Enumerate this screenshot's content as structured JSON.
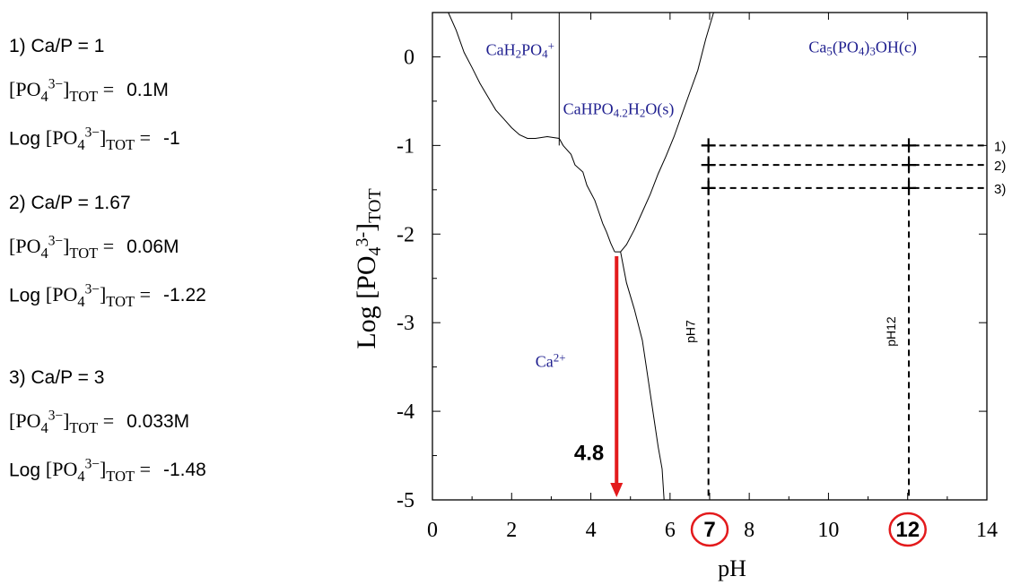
{
  "cases": [
    {
      "heading": "1) Ca/P = 1",
      "conc": "0.1M",
      "log": "-1"
    },
    {
      "heading": "2) Ca/P = 1.67",
      "conc": "0.06M",
      "log": "-1.22"
    },
    {
      "heading": "3) Ca/P = 3",
      "conc": "0.033M",
      "log": "-1.48"
    }
  ],
  "formula": {
    "species": "PO",
    "sub4": "4",
    "charge": "3−",
    "tot": "TOT",
    "log_word": "Log",
    "eq": "="
  },
  "chart_data": {
    "type": "line",
    "title": "",
    "xlabel": "pH",
    "ylabel": "Log [PO4 3-]TOT",
    "xlim": [
      0,
      14
    ],
    "ylim": [
      -5,
      0.5
    ],
    "xticks": [
      "0",
      "2",
      "4",
      "6",
      "7",
      "8",
      "10",
      "12",
      "14"
    ],
    "yticks": [
      "0",
      "-1",
      "-2",
      "-3",
      "-4",
      "-5"
    ],
    "boundaries": [
      {
        "name": "",
        "points": [
          [
            0.4,
            0.5
          ],
          [
            0.6,
            0.3
          ],
          [
            0.8,
            0.05
          ],
          [
            1.0,
            -0.12
          ],
          [
            1.2,
            -0.3
          ],
          [
            1.4,
            -0.45
          ],
          [
            1.6,
            -0.6
          ],
          [
            1.8,
            -0.7
          ],
          [
            2.0,
            -0.8
          ],
          [
            2.2,
            -0.88
          ],
          [
            2.4,
            -0.92
          ],
          [
            2.6,
            -0.92
          ],
          [
            2.9,
            -0.9
          ],
          [
            3.2,
            -0.92
          ],
          [
            3.3,
            -1.0
          ],
          [
            3.5,
            -1.1
          ],
          [
            3.6,
            -1.22
          ],
          [
            3.8,
            -1.3
          ],
          [
            3.9,
            -1.45
          ],
          [
            4.1,
            -1.62
          ],
          [
            4.2,
            -1.75
          ],
          [
            4.3,
            -1.88
          ],
          [
            4.4,
            -1.98
          ],
          [
            4.5,
            -2.1
          ],
          [
            4.6,
            -2.2
          ]
        ]
      },
      {
        "name": "",
        "points": [
          [
            3.2,
            0.5
          ],
          [
            3.2,
            -1.0
          ]
        ]
      },
      {
        "name": "",
        "points": [
          [
            7.1,
            0.5
          ],
          [
            6.9,
            0.2
          ],
          [
            6.7,
            -0.15
          ],
          [
            6.5,
            -0.4
          ],
          [
            6.3,
            -0.65
          ],
          [
            6.1,
            -0.9
          ],
          [
            5.9,
            -1.12
          ],
          [
            5.7,
            -1.32
          ],
          [
            5.5,
            -1.55
          ],
          [
            5.3,
            -1.75
          ],
          [
            5.1,
            -1.95
          ],
          [
            4.9,
            -2.12
          ],
          [
            4.75,
            -2.2
          ]
        ]
      },
      {
        "name": "",
        "points": [
          [
            4.6,
            -2.2
          ],
          [
            4.75,
            -2.2
          ],
          [
            4.9,
            -2.55
          ],
          [
            5.1,
            -2.85
          ],
          [
            5.3,
            -3.2
          ],
          [
            5.4,
            -3.5
          ],
          [
            5.5,
            -3.8
          ],
          [
            5.6,
            -4.1
          ],
          [
            5.7,
            -4.4
          ],
          [
            5.8,
            -4.65
          ],
          [
            5.85,
            -5.0
          ]
        ]
      }
    ],
    "region_labels": [
      {
        "text": "CaH2PO4+",
        "x": 1.35,
        "y": 0.02
      },
      {
        "text": "CaHPO4.2H2O(s)",
        "x": 3.3,
        "y": -0.65
      },
      {
        "text": "Ca5(PO4)3OH(c)",
        "x": 9.5,
        "y": 0.05
      },
      {
        "text": "Ca2+",
        "x": 2.6,
        "y": -3.5
      }
    ],
    "arrow": {
      "from": [
        4.65,
        -2.25
      ],
      "to": [
        4.65,
        -4.95
      ],
      "label": "4.8",
      "color": "#e31a1c"
    },
    "reference_lines": {
      "horizontal": [
        {
          "y": -1,
          "x_start": 6.97,
          "x_end": 14,
          "label": "1)"
        },
        {
          "y": -1.22,
          "x_start": 6.97,
          "x_end": 14,
          "label": "2)"
        },
        {
          "y": -1.48,
          "x_start": 6.97,
          "x_end": 14,
          "label": "3)"
        }
      ],
      "vertical": [
        {
          "x": 6.97,
          "y_start": -1,
          "y_end": -5,
          "label": "pH7"
        },
        {
          "x": 12.03,
          "y_start": -1,
          "y_end": -5,
          "label": "pH12"
        }
      ]
    },
    "highlighted_ticks": [
      "7",
      "12"
    ],
    "colors": {
      "label_blue": "#1f1f8f",
      "highlight_red": "#e31a1c"
    }
  }
}
